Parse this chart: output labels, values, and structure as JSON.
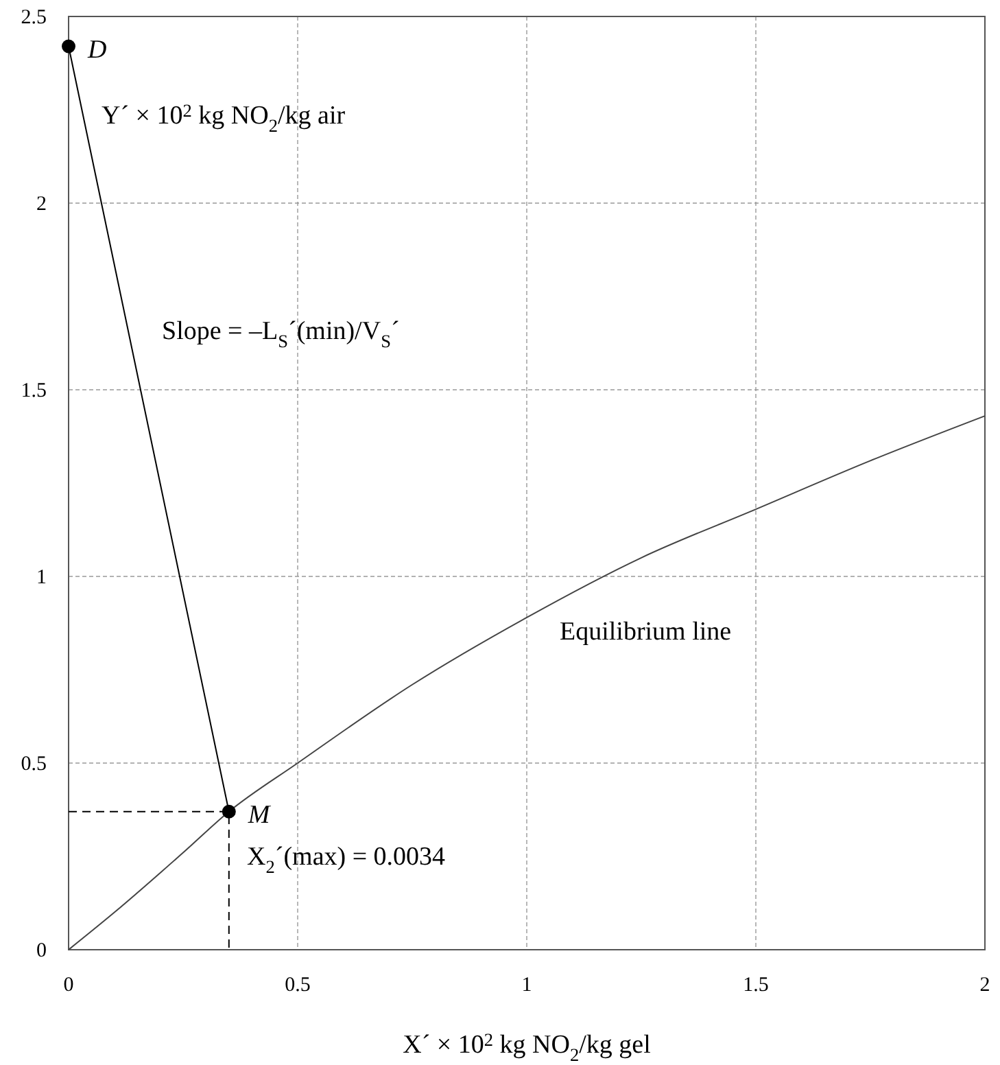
{
  "chart_data": {
    "type": "line",
    "xlabel": "X´ × 10$^{2}$ kg NO$_{2}$/kg gel",
    "ylabel": "Y´ × 10$^{2}$ kg NO$_{2}$/kg air",
    "xlim": [
      0,
      2
    ],
    "ylim": [
      0,
      2.5
    ],
    "xticks": [
      0,
      0.5,
      1,
      1.5,
      2
    ],
    "yticks": [
      0,
      0.5,
      1,
      1.5,
      2,
      2.5
    ],
    "grid": true,
    "series": [
      {
        "color": "#444444",
        "x": [
          0,
          0.1,
          0.25,
          0.35,
          0.5,
          0.75,
          1,
          1.25,
          1.5,
          1.75,
          2
        ],
        "values": [
          0,
          0.1,
          0.26,
          0.37,
          0.5,
          0.71,
          0.89,
          1.05,
          1.18,
          1.31,
          1.43
        ],
        "marker": "none",
        "line_style": "solid"
      },
      {
        "color": "#000000",
        "x": [
          0,
          0.35
        ],
        "values": [
          2.42,
          0.37
        ],
        "marker": "circle",
        "line_style": "solid"
      },
      {
        "color": "#000000",
        "x": [
          0,
          0.35,
          0.35
        ],
        "values": [
          0.37,
          0.37,
          0
        ],
        "marker": "none",
        "line_style": "dashed"
      }
    ],
    "annotations": [
      {
        "text": "D",
        "x": 0,
        "y": 2.42
      },
      {
        "text": "M",
        "x": 0.35,
        "y": 0.37
      },
      "Slope = –L$_{S}$´(min)/V$_{S}$´",
      "Equilibrium line",
      "X$_{2}$´(max) = 0.0034"
    ]
  }
}
